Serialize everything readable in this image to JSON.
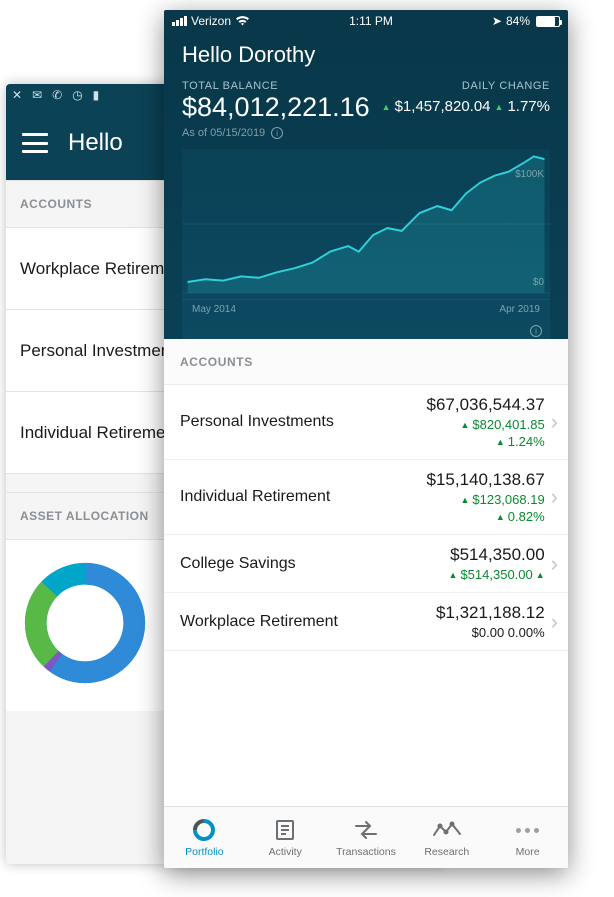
{
  "back": {
    "greeting": "Hello",
    "sections": {
      "accounts_label": "ACCOUNTS",
      "asset_alloc_label": "ASSET ALLOCATION"
    },
    "rows": {
      "workplace": "Workplace Retirement",
      "personal": "Personal Investments",
      "individual": "Individual Retirement"
    },
    "donut": {
      "segments": [
        {
          "color": "#2f8bd8",
          "pct": 60
        },
        {
          "color": "#59b947",
          "pct": 25
        },
        {
          "color": "#7e57c2",
          "pct": 2
        },
        {
          "color": "#00a6c8",
          "pct": 13
        }
      ],
      "bg": "#ffffff"
    }
  },
  "front": {
    "status": {
      "carrier": "Verizon",
      "time": "1:11 PM",
      "battery_pct": "84%"
    },
    "greeting": "Hello Dorothy",
    "balance": {
      "label": "TOTAL BALANCE",
      "value": "$84,012,221.16",
      "asof": "As of 05/15/2019"
    },
    "daily": {
      "label": "DAILY CHANGE",
      "amount": "$1,457,820.04",
      "pct": "1.77%"
    },
    "chart": {
      "line_color": "#2fd0d8",
      "fill_color": "rgba(47,208,216,0.18)",
      "bg_from": "#0a4156",
      "bg_to": "#0c4a61",
      "points": [
        [
          0,
          0.08
        ],
        [
          0.05,
          0.1
        ],
        [
          0.1,
          0.09
        ],
        [
          0.15,
          0.12
        ],
        [
          0.2,
          0.11
        ],
        [
          0.25,
          0.15
        ],
        [
          0.3,
          0.18
        ],
        [
          0.35,
          0.22
        ],
        [
          0.4,
          0.3
        ],
        [
          0.45,
          0.34
        ],
        [
          0.48,
          0.3
        ],
        [
          0.52,
          0.42
        ],
        [
          0.56,
          0.47
        ],
        [
          0.6,
          0.45
        ],
        [
          0.65,
          0.58
        ],
        [
          0.7,
          0.63
        ],
        [
          0.74,
          0.6
        ],
        [
          0.78,
          0.72
        ],
        [
          0.82,
          0.8
        ],
        [
          0.86,
          0.85
        ],
        [
          0.9,
          0.88
        ],
        [
          0.94,
          0.94
        ],
        [
          0.97,
          0.99
        ],
        [
          1.0,
          0.97
        ]
      ],
      "ylabels": {
        "top": "$100K",
        "bottom": "$0"
      },
      "xlabels": {
        "left": "May 2014",
        "right": "Apr 2019"
      }
    },
    "accounts_label": "ACCOUNTS",
    "accounts": [
      {
        "name": "Personal Investments",
        "balance": "$67,036,544.37",
        "change_amt": "$820,401.85",
        "change_pct": "1.24%",
        "up": true
      },
      {
        "name": "Individual Retirement",
        "balance": "$15,140,138.67",
        "change_amt": "$123,068.19",
        "change_pct": "0.82%",
        "up": true
      },
      {
        "name": "College Savings",
        "balance": "$514,350.00",
        "change_amt": "$514,350.00",
        "change_pct": "",
        "up": true
      },
      {
        "name": "Workplace Retirement",
        "balance": "$1,321,188.12",
        "change_amt": "$0.00",
        "change_pct": "0.00%",
        "up": false
      }
    ],
    "tabs": {
      "portfolio": "Portfolio",
      "activity": "Activity",
      "transactions": "Transactions",
      "research": "Research",
      "more": "More"
    }
  },
  "colors": {
    "header_bg": "#0b4255",
    "front_bg": "#08384a",
    "pos_green": "#0a8a2f",
    "tri_green": "#3ecf5a",
    "accent": "#0091c8",
    "muted": "#8a8f94"
  }
}
